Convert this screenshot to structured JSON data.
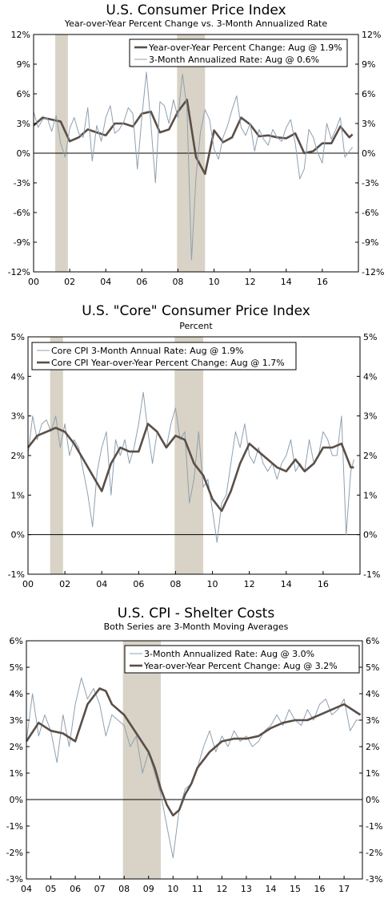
{
  "chart_data": [
    {
      "type": "line",
      "title": "U.S. Consumer Price Index",
      "subtitle": "Year-over-Year Percent Change vs. 3-Month Annualized Rate",
      "x_tick_labels": [
        "00",
        "02",
        "04",
        "06",
        "08",
        "10",
        "12",
        "14",
        "16"
      ],
      "x_ticks": [
        2000,
        2002,
        2004,
        2006,
        2008,
        2010,
        2012,
        2014,
        2016
      ],
      "xlim": [
        2000,
        2018
      ],
      "ylim": [
        -12,
        12
      ],
      "y_ticks": [
        -12,
        -9,
        -6,
        -3,
        0,
        3,
        6,
        9,
        12
      ],
      "y_tick_labels": [
        "-12%",
        "-9%",
        "-6%",
        "-3%",
        "0%",
        "3%",
        "6%",
        "9%",
        "12%"
      ],
      "grid": false,
      "zero_line": true,
      "legend_position": "top-right",
      "shaded_regions": [
        [
          2001.2,
          2001.9
        ],
        [
          2007.95,
          2009.5
        ]
      ],
      "series": [
        {
          "name": "Year-over-Year Percent Change: Aug @ 1.9%",
          "style": "thick",
          "color": "#5a4f48",
          "x": [
            2000,
            2000.5,
            2001,
            2001.5,
            2002,
            2002.5,
            2003,
            2003.5,
            2004,
            2004.5,
            2005,
            2005.5,
            2006,
            2006.5,
            2007,
            2007.5,
            2008,
            2008.5,
            2009,
            2009.5,
            2010,
            2010.5,
            2011,
            2011.5,
            2012,
            2012.5,
            2013,
            2013.5,
            2014,
            2014.5,
            2015,
            2015.5,
            2016,
            2016.5,
            2017,
            2017.5,
            2017.67
          ],
          "values": [
            2.8,
            3.6,
            3.4,
            3.2,
            1.2,
            1.6,
            2.4,
            2.1,
            1.8,
            3.0,
            3.0,
            2.7,
            4.0,
            4.2,
            2.1,
            2.4,
            4.2,
            5.4,
            -0.4,
            -2.1,
            2.3,
            1.1,
            1.6,
            3.6,
            2.9,
            1.7,
            1.8,
            1.6,
            1.5,
            2.0,
            0.0,
            0.2,
            1.0,
            1.0,
            2.7,
            1.6,
            1.9
          ]
        },
        {
          "name": "3-Month Annualized Rate: Aug @ 0.6%",
          "style": "thin",
          "color": "#8fa0b0",
          "x": [
            2000,
            2000.25,
            2000.5,
            2000.75,
            2001,
            2001.25,
            2001.5,
            2001.75,
            2002,
            2002.25,
            2002.5,
            2002.75,
            2003,
            2003.25,
            2003.5,
            2003.75,
            2004,
            2004.25,
            2004.5,
            2004.75,
            2005,
            2005.25,
            2005.5,
            2005.75,
            2006,
            2006.25,
            2006.5,
            2006.75,
            2007,
            2007.25,
            2007.5,
            2007.75,
            2008,
            2008.25,
            2008.5,
            2008.75,
            2009,
            2009.25,
            2009.5,
            2009.75,
            2010,
            2010.25,
            2010.5,
            2010.75,
            2011,
            2011.25,
            2011.5,
            2011.75,
            2012,
            2012.25,
            2012.5,
            2012.75,
            2013,
            2013.25,
            2013.5,
            2013.75,
            2014,
            2014.25,
            2014.5,
            2014.75,
            2015,
            2015.25,
            2015.5,
            2015.75,
            2016,
            2016.25,
            2016.5,
            2016.75,
            2017,
            2017.25,
            2017.5,
            2017.67
          ],
          "values": [
            4.2,
            2.6,
            3.4,
            3.6,
            2.2,
            3.8,
            1.0,
            -0.4,
            2.5,
            3.6,
            2.0,
            1.6,
            4.6,
            -0.8,
            2.8,
            1.2,
            3.6,
            4.8,
            2.0,
            2.4,
            3.2,
            4.6,
            4.0,
            -1.6,
            3.6,
            8.2,
            3.0,
            -3.0,
            5.2,
            4.8,
            3.0,
            5.4,
            3.6,
            8.0,
            4.6,
            -10.8,
            -2.4,
            2.2,
            4.4,
            3.4,
            0.4,
            -0.6,
            1.6,
            2.8,
            4.4,
            5.8,
            2.6,
            1.8,
            3.0,
            0.2,
            2.4,
            1.4,
            0.8,
            2.4,
            1.6,
            1.2,
            2.6,
            3.4,
            1.0,
            -2.6,
            -1.6,
            2.4,
            1.6,
            0.0,
            -1.0,
            3.0,
            1.4,
            2.4,
            3.6,
            -0.4,
            0.2,
            0.6
          ]
        }
      ]
    },
    {
      "type": "line",
      "title": "U.S. \"Core\" Consumer Price Index",
      "subtitle": "Percent",
      "x_tick_labels": [
        "00",
        "02",
        "04",
        "06",
        "08",
        "10",
        "12",
        "14",
        "16"
      ],
      "x_ticks": [
        2000,
        2002,
        2004,
        2006,
        2008,
        2010,
        2012,
        2014,
        2016
      ],
      "xlim": [
        2000,
        2018
      ],
      "ylim": [
        -1,
        5
      ],
      "y_ticks": [
        -1,
        0,
        1,
        2,
        3,
        4,
        5
      ],
      "y_tick_labels": [
        "-1%",
        "0%",
        "1%",
        "2%",
        "3%",
        "4%",
        "5%"
      ],
      "grid": false,
      "zero_line": true,
      "legend_position": "top-left",
      "shaded_regions": [
        [
          2001.2,
          2001.9
        ],
        [
          2007.95,
          2009.5
        ]
      ],
      "series": [
        {
          "name": "Core CPI 3-Month Annual Rate: Aug @ 1.9%",
          "style": "thin",
          "color": "#8fa0b0",
          "x": [
            2000,
            2000.25,
            2000.5,
            2000.75,
            2001,
            2001.25,
            2001.5,
            2001.75,
            2002,
            2002.25,
            2002.5,
            2002.75,
            2003,
            2003.25,
            2003.5,
            2003.75,
            2004,
            2004.25,
            2004.5,
            2004.75,
            2005,
            2005.25,
            2005.5,
            2005.75,
            2006,
            2006.25,
            2006.5,
            2006.75,
            2007,
            2007.25,
            2007.5,
            2007.75,
            2008,
            2008.25,
            2008.5,
            2008.75,
            2009,
            2009.25,
            2009.5,
            2009.75,
            2010,
            2010.25,
            2010.5,
            2010.75,
            2011,
            2011.25,
            2011.5,
            2011.75,
            2012,
            2012.25,
            2012.5,
            2012.75,
            2013,
            2013.25,
            2013.5,
            2013.75,
            2014,
            2014.25,
            2014.5,
            2014.75,
            2015,
            2015.25,
            2015.5,
            2015.75,
            2016,
            2016.25,
            2016.5,
            2016.75,
            2017,
            2017.25,
            2017.5,
            2017.67
          ],
          "values": [
            2.0,
            3.0,
            2.4,
            2.8,
            2.9,
            2.6,
            3.0,
            2.2,
            2.8,
            2.0,
            2.4,
            2.2,
            1.6,
            1.0,
            0.2,
            1.6,
            2.2,
            2.6,
            1.0,
            2.4,
            2.0,
            2.4,
            1.8,
            2.2,
            2.8,
            3.6,
            2.6,
            1.8,
            2.6,
            2.4,
            2.2,
            2.8,
            3.2,
            2.4,
            2.6,
            0.8,
            1.4,
            2.6,
            1.2,
            1.4,
            0.6,
            -0.2,
            0.8,
            1.0,
            1.8,
            2.6,
            2.2,
            2.8,
            2.0,
            1.8,
            2.2,
            1.8,
            1.6,
            1.8,
            1.4,
            1.8,
            2.0,
            2.4,
            1.6,
            1.8,
            1.6,
            2.4,
            1.8,
            2.0,
            2.6,
            2.4,
            2.0,
            2.0,
            3.0,
            0.0,
            1.6,
            1.9
          ]
        },
        {
          "name": "Core CPI Year-over-Year Percent Change: Aug @ 1.7%",
          "style": "thick",
          "color": "#5a4f48",
          "x": [
            2000,
            2000.5,
            2001,
            2001.5,
            2002,
            2002.5,
            2003,
            2003.5,
            2004,
            2004.5,
            2005,
            2005.5,
            2006,
            2006.5,
            2007,
            2007.5,
            2008,
            2008.5,
            2009,
            2009.5,
            2010,
            2010.5,
            2011,
            2011.5,
            2012,
            2012.5,
            2013,
            2013.5,
            2014,
            2014.5,
            2015,
            2015.5,
            2016,
            2016.5,
            2017,
            2017.5,
            2017.67
          ],
          "values": [
            2.2,
            2.5,
            2.6,
            2.7,
            2.6,
            2.3,
            1.9,
            1.5,
            1.1,
            1.8,
            2.2,
            2.1,
            2.1,
            2.8,
            2.6,
            2.2,
            2.5,
            2.4,
            1.8,
            1.5,
            0.9,
            0.6,
            1.1,
            1.8,
            2.3,
            2.1,
            1.9,
            1.7,
            1.6,
            1.9,
            1.6,
            1.8,
            2.2,
            2.2,
            2.3,
            1.7,
            1.7
          ]
        }
      ]
    },
    {
      "type": "line",
      "title": "U.S. CPI - Shelter Costs",
      "subtitle": "Both Series are 3-Month Moving Averages",
      "x_tick_labels": [
        "04",
        "05",
        "06",
        "07",
        "08",
        "09",
        "10",
        "11",
        "12",
        "13",
        "14",
        "15",
        "16",
        "17"
      ],
      "x_ticks": [
        2004,
        2005,
        2006,
        2007,
        2008,
        2009,
        2010,
        2011,
        2012,
        2013,
        2014,
        2015,
        2016,
        2017
      ],
      "xlim": [
        2004,
        2017.75
      ],
      "ylim": [
        -3,
        6
      ],
      "y_ticks": [
        -3,
        -2,
        -1,
        0,
        1,
        2,
        3,
        4,
        5,
        6
      ],
      "y_tick_labels": [
        "-3%",
        "-2%",
        "-1%",
        "0%",
        "1%",
        "2%",
        "3%",
        "4%",
        "5%",
        "6%"
      ],
      "grid": false,
      "zero_line": true,
      "legend_position": "top-right",
      "shaded_regions": [
        [
          2007.95,
          2009.5
        ]
      ],
      "series": [
        {
          "name": "3-Month Annualized Rate: Aug @ 3.0%",
          "style": "thin",
          "color": "#8fa0b0",
          "x": [
            2004,
            2004.25,
            2004.5,
            2004.75,
            2005,
            2005.25,
            2005.5,
            2005.75,
            2006,
            2006.25,
            2006.5,
            2006.75,
            2007,
            2007.25,
            2007.5,
            2007.75,
            2008,
            2008.25,
            2008.5,
            2008.75,
            2009,
            2009.25,
            2009.5,
            2009.75,
            2010,
            2010.25,
            2010.5,
            2010.75,
            2011,
            2011.25,
            2011.5,
            2011.75,
            2012,
            2012.25,
            2012.5,
            2012.75,
            2013,
            2013.25,
            2013.5,
            2013.75,
            2014,
            2014.25,
            2014.5,
            2014.75,
            2015,
            2015.25,
            2015.5,
            2015.75,
            2016,
            2016.25,
            2016.5,
            2016.75,
            2017,
            2017.25,
            2017.5,
            2017.67
          ],
          "values": [
            2.2,
            4.0,
            2.4,
            3.2,
            2.6,
            1.4,
            3.2,
            2.0,
            3.6,
            4.6,
            3.8,
            4.2,
            3.6,
            2.4,
            3.2,
            3.0,
            2.8,
            2.0,
            2.4,
            1.0,
            1.8,
            1.0,
            0.2,
            -1.0,
            -2.2,
            -0.4,
            0.4,
            0.6,
            1.2,
            2.0,
            2.6,
            1.8,
            2.4,
            2.0,
            2.6,
            2.2,
            2.4,
            2.0,
            2.2,
            2.6,
            2.8,
            3.2,
            2.8,
            3.4,
            3.0,
            2.8,
            3.4,
            3.0,
            3.6,
            3.8,
            3.2,
            3.4,
            3.8,
            2.6,
            3.0,
            3.0
          ]
        },
        {
          "name": "Year-over-Year Percent Change: Aug @ 3.2%",
          "style": "thick",
          "color": "#5a4f48",
          "x": [
            2004,
            2004.5,
            2005,
            2005.5,
            2006,
            2006.5,
            2007,
            2007.25,
            2007.5,
            2008,
            2008.5,
            2009,
            2009.25,
            2009.5,
            2009.75,
            2010,
            2010.25,
            2010.5,
            2010.75,
            2011,
            2011.5,
            2012,
            2012.5,
            2013,
            2013.5,
            2014,
            2014.5,
            2015,
            2015.5,
            2016,
            2016.5,
            2017,
            2017.5,
            2017.67
          ],
          "values": [
            2.2,
            2.9,
            2.6,
            2.5,
            2.2,
            3.6,
            4.2,
            4.1,
            3.6,
            3.2,
            2.5,
            1.8,
            1.2,
            0.4,
            -0.2,
            -0.6,
            -0.4,
            0.2,
            0.6,
            1.2,
            1.8,
            2.2,
            2.3,
            2.3,
            2.4,
            2.7,
            2.9,
            3.0,
            3.0,
            3.2,
            3.4,
            3.6,
            3.3,
            3.2
          ]
        }
      ]
    }
  ]
}
